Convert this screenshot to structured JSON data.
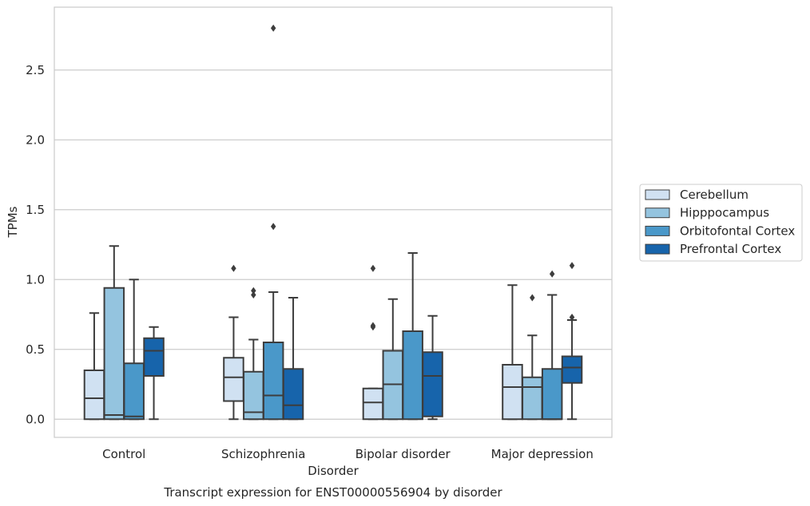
{
  "chart_data": {
    "type": "box",
    "caption": "Transcript expression for ENST00000556904 by disorder",
    "xlabel": "Disorder",
    "ylabel": "TPMs",
    "ylim": [
      -0.13,
      2.95
    ],
    "yticks": [
      "0.0",
      "0.5",
      "1.0",
      "1.5",
      "2.0",
      "2.5"
    ],
    "grid": true,
    "legend_position": "right, outside plot",
    "categories": [
      "Control",
      "Schizophrenia",
      "Bipolar disorder",
      "Major depression"
    ],
    "series": [
      {
        "name": "Cerebellum",
        "color": "#d0e1f2",
        "boxes": [
          {
            "min": 0.0,
            "q1": 0.0,
            "median": 0.15,
            "q3": 0.35,
            "max": 0.76,
            "outliers": []
          },
          {
            "min": 0.0,
            "q1": 0.13,
            "median": 0.3,
            "q3": 0.44,
            "max": 0.73,
            "outliers": [
              1.08
            ]
          },
          {
            "min": 0.0,
            "q1": 0.0,
            "median": 0.12,
            "q3": 0.22,
            "max": 0.22,
            "outliers": [
              0.66,
              0.67,
              1.08
            ]
          },
          {
            "min": 0.0,
            "q1": 0.0,
            "median": 0.23,
            "q3": 0.39,
            "max": 0.96,
            "outliers": []
          }
        ]
      },
      {
        "name": "Hipppocampus",
        "color": "#94c4df",
        "boxes": [
          {
            "min": 0.0,
            "q1": 0.0,
            "median": 0.03,
            "q3": 0.94,
            "max": 1.24,
            "outliers": []
          },
          {
            "min": 0.0,
            "q1": 0.0,
            "median": 0.05,
            "q3": 0.34,
            "max": 0.57,
            "outliers": [
              0.89,
              0.92
            ]
          },
          {
            "min": 0.0,
            "q1": 0.0,
            "median": 0.25,
            "q3": 0.49,
            "max": 0.86,
            "outliers": []
          },
          {
            "min": 0.0,
            "q1": 0.0,
            "median": 0.23,
            "q3": 0.3,
            "max": 0.6,
            "outliers": [
              0.87
            ]
          }
        ]
      },
      {
        "name": "Orbitofontal Cortex",
        "color": "#4a98c9",
        "boxes": [
          {
            "min": 0.0,
            "q1": 0.0,
            "median": 0.02,
            "q3": 0.4,
            "max": 1.0,
            "outliers": []
          },
          {
            "min": 0.0,
            "q1": 0.0,
            "median": 0.17,
            "q3": 0.55,
            "max": 0.91,
            "outliers": [
              1.38,
              2.8
            ]
          },
          {
            "min": 0.0,
            "q1": 0.0,
            "median": 0.63,
            "q3": 0.63,
            "max": 1.19,
            "outliers": []
          },
          {
            "min": 0.0,
            "q1": 0.0,
            "median": 0.0,
            "q3": 0.36,
            "max": 0.89,
            "outliers": [
              1.04
            ]
          }
        ]
      },
      {
        "name": "Prefrontal Cortex",
        "color": "#1764ab",
        "boxes": [
          {
            "min": 0.0,
            "q1": 0.31,
            "median": 0.49,
            "q3": 0.58,
            "max": 0.66,
            "outliers": []
          },
          {
            "min": 0.0,
            "q1": 0.0,
            "median": 0.1,
            "q3": 0.36,
            "max": 0.87,
            "outliers": []
          },
          {
            "min": 0.0,
            "q1": 0.02,
            "median": 0.31,
            "q3": 0.48,
            "max": 0.74,
            "outliers": []
          },
          {
            "min": 0.0,
            "q1": 0.26,
            "median": 0.37,
            "q3": 0.45,
            "max": 0.71,
            "outliers": [
              0.73,
              1.1
            ]
          }
        ]
      }
    ]
  }
}
